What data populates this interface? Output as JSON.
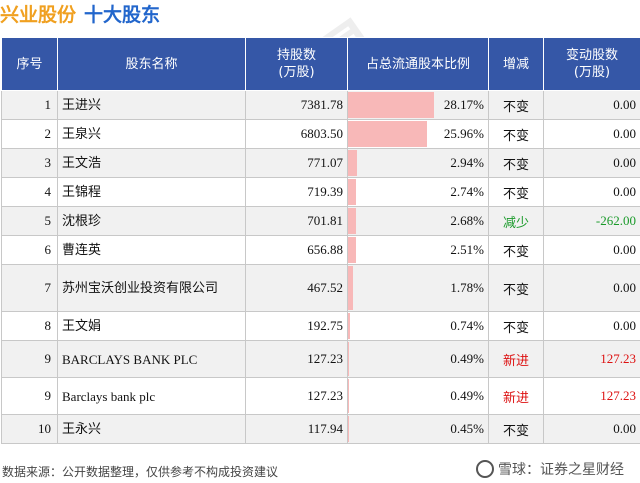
{
  "title": {
    "company": "兴业股份",
    "section": "十大股东"
  },
  "headers": [
    "序号",
    "股东名称",
    "持股数\n(万股)",
    "占总流通股本比例",
    "增减",
    "变动股数\n(万股)"
  ],
  "rows": [
    {
      "idx": "1",
      "name": "王进兴",
      "shares": "7381.78",
      "ratio": "28.17%",
      "ratio_value": 28.17,
      "change": "不变",
      "delta": "0.00",
      "change_type": "same"
    },
    {
      "idx": "2",
      "name": "王泉兴",
      "shares": "6803.50",
      "ratio": "25.96%",
      "ratio_value": 25.96,
      "change": "不变",
      "delta": "0.00",
      "change_type": "same"
    },
    {
      "idx": "3",
      "name": "王文浩",
      "shares": "771.07",
      "ratio": "2.94%",
      "ratio_value": 2.94,
      "change": "不变",
      "delta": "0.00",
      "change_type": "same"
    },
    {
      "idx": "4",
      "name": "王锦程",
      "shares": "719.39",
      "ratio": "2.74%",
      "ratio_value": 2.74,
      "change": "不变",
      "delta": "0.00",
      "change_type": "same"
    },
    {
      "idx": "5",
      "name": "沈根珍",
      "shares": "701.81",
      "ratio": "2.68%",
      "ratio_value": 2.68,
      "change": "减少",
      "delta": "-262.00",
      "change_type": "down"
    },
    {
      "idx": "6",
      "name": "曹连英",
      "shares": "656.88",
      "ratio": "2.51%",
      "ratio_value": 2.51,
      "change": "不变",
      "delta": "0.00",
      "change_type": "same"
    },
    {
      "idx": "7",
      "name": "苏州宝沃创业投资有限公司",
      "shares": "467.52",
      "ratio": "1.78%",
      "ratio_value": 1.78,
      "change": "不变",
      "delta": "0.00",
      "change_type": "same"
    },
    {
      "idx": "8",
      "name": "王文娟",
      "shares": "192.75",
      "ratio": "0.74%",
      "ratio_value": 0.74,
      "change": "不变",
      "delta": "0.00",
      "change_type": "same"
    },
    {
      "idx": "9",
      "name": "BARCLAYS BANK PLC",
      "shares": "127.23",
      "ratio": "0.49%",
      "ratio_value": 0.49,
      "change": "新进",
      "delta": "127.23",
      "change_type": "new"
    },
    {
      "idx": "9",
      "name": "Barclays bank plc",
      "shares": "127.23",
      "ratio": "0.49%",
      "ratio_value": 0.49,
      "change": "新进",
      "delta": "127.23",
      "change_type": "new"
    },
    {
      "idx": "10",
      "name": "王永兴",
      "shares": "117.94",
      "ratio": "0.45%",
      "ratio_value": 0.45,
      "change": "不变",
      "delta": "0.00",
      "change_type": "same"
    }
  ],
  "footer": {
    "source": "数据来源：公开数据整理，仅供参考不构成投资建议",
    "brand": "雪球：证券之星财经"
  },
  "colors": {
    "header_bg": "#3557a7",
    "bar": "#f8b8b8",
    "down": "#1a9a2a",
    "new": "#dd1111"
  }
}
